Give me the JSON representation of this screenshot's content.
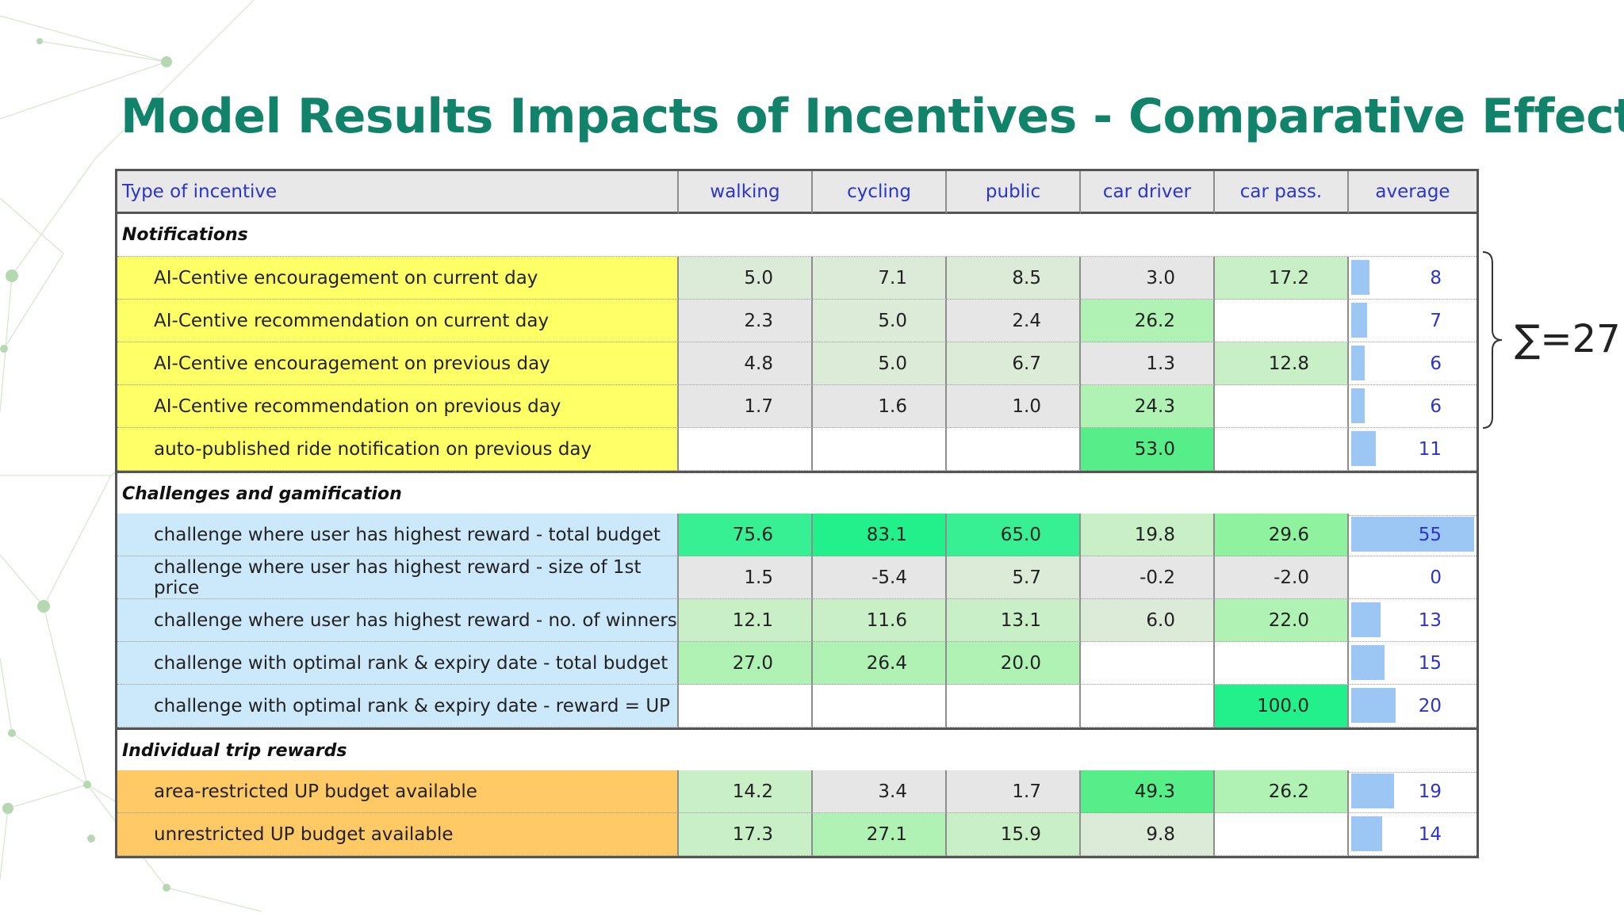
{
  "title": "Model Results Impacts of Incentives - Comparative Effect",
  "header": [
    "Type of incentive",
    "walking",
    "cycling",
    "public",
    "car driver",
    "car pass.",
    "average"
  ],
  "sections": [
    {
      "name": "Notifications",
      "label_color": "#ffff66",
      "rows": [
        {
          "label": "AI-Centive encouragement on current day",
          "values": [
            "5.0",
            "7.1",
            "8.5",
            "3.0",
            "17.2"
          ],
          "average": "8",
          "avg_num": 8
        },
        {
          "label": "AI-Centive recommendation on current day",
          "values": [
            "2.3",
            "5.0",
            "2.4",
            "26.2",
            ""
          ],
          "average": "7",
          "avg_num": 7
        },
        {
          "label": "AI-Centive encouragement on previous day",
          "values": [
            "4.8",
            "5.0",
            "6.7",
            "1.3",
            "12.8"
          ],
          "average": "6",
          "avg_num": 6
        },
        {
          "label": "AI-Centive recommendation on previous day",
          "values": [
            "1.7",
            "1.6",
            "1.0",
            "24.3",
            ""
          ],
          "average": "6",
          "avg_num": 6
        },
        {
          "label": "auto-published ride notification on previous day",
          "values": [
            "",
            "",
            "",
            "53.0",
            ""
          ],
          "average": "11",
          "avg_num": 11
        }
      ]
    },
    {
      "name": "Challenges and gamification",
      "label_color": "#cce8fb",
      "rows": [
        {
          "label": "challenge where user has highest reward - total budget",
          "values": [
            "75.6",
            "83.1",
            "65.0",
            "19.8",
            "29.6"
          ],
          "average": "55",
          "avg_num": 55
        },
        {
          "label": "challenge where user has highest reward  - size of 1st price",
          "values": [
            "1.5",
            "-5.4",
            "5.7",
            "-0.2",
            "-2.0"
          ],
          "average": "0",
          "avg_num": 0
        },
        {
          "label": "challenge where user has highest reward - no. of winners",
          "values": [
            "12.1",
            "11.6",
            "13.1",
            "6.0",
            "22.0"
          ],
          "average": "13",
          "avg_num": 13
        },
        {
          "label": "challenge with optimal rank & expiry date - total budget",
          "values": [
            "27.0",
            "26.4",
            "20.0",
            "",
            ""
          ],
          "average": "15",
          "avg_num": 15
        },
        {
          "label": "challenge with optimal rank & expiry date - reward = UP",
          "values": [
            "",
            "",
            "",
            "",
            "100.0"
          ],
          "average": "20",
          "avg_num": 20
        }
      ]
    },
    {
      "name": "Individual trip rewards",
      "label_color": "#ffc966",
      "rows": [
        {
          "label": "area-restricted UP budget available",
          "values": [
            "14.2",
            "3.4",
            "1.7",
            "49.3",
            "26.2"
          ],
          "average": "19",
          "avg_num": 19
        },
        {
          "label": "unrestricted UP budget available",
          "values": [
            "17.3",
            "27.1",
            "15.9",
            "9.8",
            ""
          ],
          "average": "14",
          "avg_num": 14
        }
      ]
    }
  ],
  "sum_annotation": "∑=27"
}
